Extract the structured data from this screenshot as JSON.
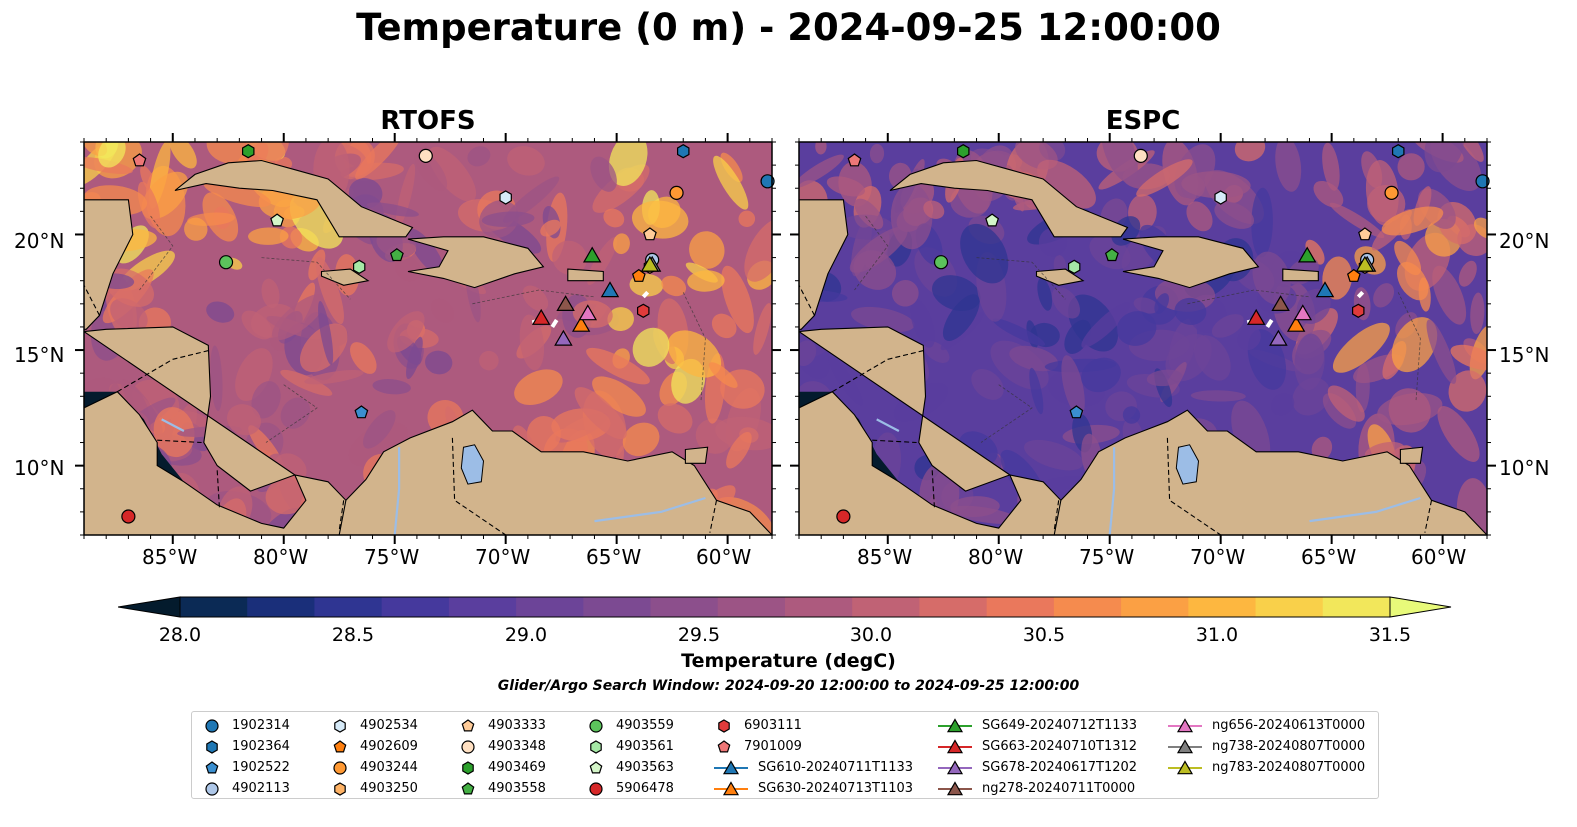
{
  "title": "Temperature (0 m) - 2024-09-25 12:00:00",
  "panels": [
    {
      "name": "RTOFS",
      "style": "warm"
    },
    {
      "name": "ESPC",
      "style": "cool"
    }
  ],
  "lat_labels": [
    "20°N",
    "15°N",
    "10°N"
  ],
  "lon_labels": [
    "85°W",
    "80°W",
    "75°W",
    "70°W",
    "65°W",
    "60°W"
  ],
  "map_extent": {
    "lon": [
      -89,
      -58
    ],
    "lat": [
      7,
      24
    ]
  },
  "colorbar": {
    "label": "Temperature (degC)",
    "ticks": [
      "28.0",
      "28.5",
      "29.0",
      "29.5",
      "30.0",
      "30.5",
      "31.0",
      "31.5"
    ],
    "range": [
      28.0,
      31.5
    ],
    "step": 0.25,
    "colors": [
      "#041b2d",
      "#0b2a55",
      "#1a2f7a",
      "#2f3592",
      "#45399d",
      "#5a3e9e",
      "#6c4498",
      "#7c4a92",
      "#8c4f8c",
      "#9c5485",
      "#ad5a7e",
      "#c06275",
      "#d66c69",
      "#ea785c",
      "#f58b4e",
      "#fba044",
      "#fdb740",
      "#f9d04a",
      "#f2e75b",
      "#e8fa7a"
    ]
  },
  "search_window": "Glider/Argo Search Window: 2024-09-20 12:00:00 to 2024-09-25 12:00:00",
  "legend": {
    "items": [
      {
        "label": "1902314",
        "marker": "circle",
        "color": "#1f77b4"
      },
      {
        "label": "1902364",
        "marker": "hexagon",
        "color": "#1f77b4"
      },
      {
        "label": "1902522",
        "marker": "pentagon",
        "color": "#3a8fd0"
      },
      {
        "label": "4902113",
        "marker": "circle",
        "color": "#aec7e8"
      },
      {
        "label": "4902534",
        "marker": "hexagon",
        "color": "#d6eaf8"
      },
      {
        "label": "4902609",
        "marker": "pentagon",
        "color": "#ff7f0e"
      },
      {
        "label": "4903244",
        "marker": "circle",
        "color": "#ff9933"
      },
      {
        "label": "4903250",
        "marker": "hexagon",
        "color": "#ffb366"
      },
      {
        "label": "4903333",
        "marker": "pentagon",
        "color": "#ffcc99"
      },
      {
        "label": "4903348",
        "marker": "circle",
        "color": "#ffe0c2"
      },
      {
        "label": "4903469",
        "marker": "hexagon",
        "color": "#2ca02c"
      },
      {
        "label": "4903558",
        "marker": "pentagon",
        "color": "#44b044"
      },
      {
        "label": "4903559",
        "marker": "circle",
        "color": "#5cc25c"
      },
      {
        "label": "4903561",
        "marker": "hexagon",
        "color": "#a6e8a6"
      },
      {
        "label": "4903563",
        "marker": "pentagon",
        "color": "#d4f5c8"
      },
      {
        "label": "5906478",
        "marker": "circle",
        "color": "#d62728"
      },
      {
        "label": "6903111",
        "marker": "hexagon",
        "color": "#e03b3b"
      },
      {
        "label": "7901009",
        "marker": "pentagon",
        "color": "#ee7777"
      },
      {
        "label": "SG610-20240711T1133",
        "marker": "triangle-line",
        "color": "#1f77b4"
      },
      {
        "label": "SG630-20240713T1103",
        "marker": "triangle-line",
        "color": "#ff7f0e"
      },
      {
        "label": "SG649-20240712T1133",
        "marker": "triangle-line",
        "color": "#2ca02c"
      },
      {
        "label": "SG663-20240710T1312",
        "marker": "triangle-line",
        "color": "#d62728"
      },
      {
        "label": "SG678-20240617T1202",
        "marker": "triangle-line",
        "color": "#9467bd"
      },
      {
        "label": "ng278-20240711T0000",
        "marker": "triangle-line",
        "color": "#8c564b"
      },
      {
        "label": "ng656-20240613T0000",
        "marker": "triangle-line",
        "color": "#e377c2"
      },
      {
        "label": "ng738-20240807T0000",
        "marker": "triangle-line",
        "color": "#7f7f7f"
      },
      {
        "label": "ng783-20240807T0000",
        "marker": "triangle-line",
        "color": "#bcbd22"
      }
    ]
  },
  "floats": [
    {
      "id": "1902314",
      "lon": -58.2,
      "lat": 22.3
    },
    {
      "id": "1902364",
      "lon": -62.0,
      "lat": 23.6
    },
    {
      "id": "1902522",
      "lon": -76.5,
      "lat": 12.3
    },
    {
      "id": "4902113",
      "lon": -63.4,
      "lat": 18.9
    },
    {
      "id": "4902534",
      "lon": -70.0,
      "lat": 21.6
    },
    {
      "id": "4902609",
      "lon": -64.0,
      "lat": 18.2
    },
    {
      "id": "4903244",
      "lon": -62.3,
      "lat": 21.8
    },
    {
      "id": "4903250",
      "lon": -63.5,
      "lat": 18.6
    },
    {
      "id": "4903333",
      "lon": -63.5,
      "lat": 20.0
    },
    {
      "id": "4903348",
      "lon": -73.6,
      "lat": 23.4
    },
    {
      "id": "4903469",
      "lon": -81.6,
      "lat": 23.6
    },
    {
      "id": "4903558",
      "lon": -74.9,
      "lat": 19.1
    },
    {
      "id": "4903559",
      "lon": -82.6,
      "lat": 18.8
    },
    {
      "id": "4903561",
      "lon": -76.6,
      "lat": 18.6
    },
    {
      "id": "4903563",
      "lon": -80.3,
      "lat": 20.6
    },
    {
      "id": "5906478",
      "lon": -87.0,
      "lat": 7.8
    },
    {
      "id": "6903111",
      "lon": -63.8,
      "lat": 16.7
    },
    {
      "id": "7901009",
      "lon": -86.5,
      "lat": 23.2
    }
  ],
  "gliders": [
    {
      "id": "SG610-20240711T1133",
      "lon": -65.3,
      "lat": 17.6
    },
    {
      "id": "SG630-20240713T1103",
      "lon": -66.6,
      "lat": 16.1
    },
    {
      "id": "SG649-20240712T1133",
      "lon": -66.1,
      "lat": 19.1
    },
    {
      "id": "SG663-20240710T1312",
      "lon": -68.4,
      "lat": 16.4
    },
    {
      "id": "SG678-20240617T1202",
      "lon": -67.4,
      "lat": 15.5
    },
    {
      "id": "ng278-20240711T0000",
      "lon": -67.3,
      "lat": 17.0
    },
    {
      "id": "ng656-20240613T0000",
      "lon": -66.3,
      "lat": 16.6
    },
    {
      "id": "ng738-20240807T0000",
      "lon": -63.4,
      "lat": 18.7
    },
    {
      "id": "ng783-20240807T0000",
      "lon": -63.5,
      "lat": 18.7
    }
  ]
}
